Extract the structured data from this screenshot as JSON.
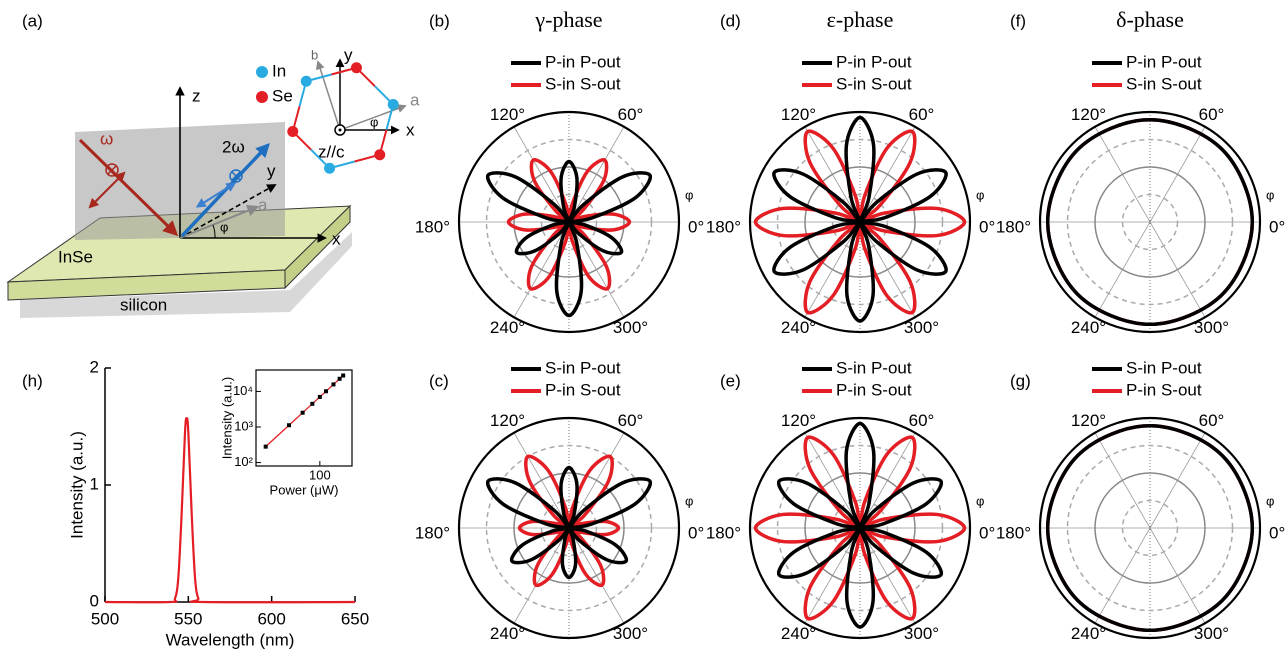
{
  "schematic": {
    "label": "(a)",
    "axis_z": "z",
    "axis_y": "y",
    "axis_x": "x",
    "omega": "ω",
    "two_omega": "2ω",
    "a_axis": "a",
    "angle": "φ",
    "material": "InSe",
    "substrate": "silicon",
    "legend": [
      "In",
      "Se"
    ],
    "crystal": {
      "b": "b",
      "y": "y",
      "x": "x",
      "a": "a",
      "angle": "φ",
      "z": "z//c"
    }
  },
  "chart_data": [
    {
      "type": "polar",
      "label": "(b)",
      "title": "γ-phase",
      "angle_label": "φ",
      "rlim": [
        0,
        1
      ],
      "rticks": [
        0.25,
        0.5,
        0.75,
        1
      ],
      "thetaticks": [
        {
          "value": 0,
          "label": "0°"
        },
        {
          "value": 60,
          "label": "60°"
        },
        {
          "value": 120,
          "label": "120°"
        },
        {
          "value": 180,
          "label": "180°"
        },
        {
          "value": 240,
          "label": "240°"
        },
        {
          "value": 300,
          "label": "300°"
        }
      ],
      "theta": [
        0,
        10,
        20,
        30,
        40,
        50,
        60,
        70,
        80,
        90,
        100,
        110,
        120,
        130,
        140,
        150,
        160,
        170,
        180,
        190,
        200,
        210,
        220,
        230,
        240,
        250,
        260,
        270,
        280,
        290,
        300,
        310,
        320,
        330,
        340,
        350
      ],
      "series": [
        {
          "name": "P-in P-out",
          "color": "#000000",
          "values": [
            0,
            0.21,
            0.64,
            0.85,
            0.64,
            0.21,
            0,
            0.14,
            0.41,
            0.55,
            0.41,
            0.14,
            0,
            0.21,
            0.64,
            0.85,
            0.64,
            0.21,
            0,
            0.14,
            0.41,
            0.55,
            0.41,
            0.14,
            0,
            0.21,
            0.64,
            0.85,
            0.64,
            0.21,
            0,
            0.14,
            0.41,
            0.55,
            0.41,
            0.14
          ]
        },
        {
          "name": "S-in S-out",
          "color": "#e31e24",
          "values": [
            0.55,
            0.41,
            0.14,
            0,
            0.16,
            0.49,
            0.65,
            0.49,
            0.16,
            0,
            0.16,
            0.49,
            0.65,
            0.49,
            0.16,
            0,
            0.14,
            0.41,
            0.55,
            0.41,
            0.14,
            0,
            0.18,
            0.53,
            0.7,
            0.53,
            0.18,
            0,
            0.18,
            0.53,
            0.7,
            0.53,
            0.18,
            0,
            0.14,
            0.41
          ]
        }
      ]
    },
    {
      "type": "polar",
      "label": "(c)",
      "angle_label": "φ",
      "rlim": [
        0,
        1
      ],
      "rticks": [
        0.25,
        0.5,
        0.75,
        1
      ],
      "thetaticks": [
        {
          "value": 0,
          "label": "0°"
        },
        {
          "value": 60,
          "label": "60°"
        },
        {
          "value": 120,
          "label": "120°"
        },
        {
          "value": 180,
          "label": "180°"
        },
        {
          "value": 240,
          "label": "240°"
        },
        {
          "value": 300,
          "label": "300°"
        }
      ],
      "theta": [
        0,
        10,
        20,
        30,
        40,
        50,
        60,
        70,
        80,
        90,
        100,
        110,
        120,
        130,
        140,
        150,
        160,
        170,
        180,
        190,
        200,
        210,
        220,
        230,
        240,
        250,
        260,
        270,
        280,
        290,
        300,
        310,
        320,
        330,
        340,
        350
      ],
      "series": [
        {
          "name": "S-in P-out",
          "color": "#000000",
          "values": [
            0,
            0.21,
            0.64,
            0.85,
            0.64,
            0.21,
            0,
            0.14,
            0.41,
            0.55,
            0.41,
            0.14,
            0,
            0.21,
            0.64,
            0.85,
            0.64,
            0.21,
            0,
            0.15,
            0.45,
            0.6,
            0.45,
            0.15,
            0,
            0.11,
            0.34,
            0.45,
            0.34,
            0.11,
            0,
            0.15,
            0.45,
            0.6,
            0.45,
            0.15
          ]
        },
        {
          "name": "P-in S-out",
          "color": "#e31e24",
          "values": [
            0.45,
            0.34,
            0.11,
            0,
            0.19,
            0.56,
            0.75,
            0.56,
            0.19,
            0,
            0.19,
            0.56,
            0.75,
            0.56,
            0.19,
            0,
            0.11,
            0.34,
            0.45,
            0.34,
            0.11,
            0,
            0.15,
            0.45,
            0.6,
            0.45,
            0.15,
            0,
            0.15,
            0.45,
            0.6,
            0.45,
            0.15,
            0,
            0.11,
            0.34
          ]
        }
      ]
    },
    {
      "type": "polar",
      "label": "(d)",
      "title": "ε-phase",
      "angle_label": "φ",
      "rlim": [
        0,
        1
      ],
      "rticks": [
        0.25,
        0.5,
        0.75,
        1
      ],
      "thetaticks": [
        {
          "value": 0,
          "label": "0°"
        },
        {
          "value": 60,
          "label": "60°"
        },
        {
          "value": 120,
          "label": "120°"
        },
        {
          "value": 180,
          "label": "180°"
        },
        {
          "value": 240,
          "label": "240°"
        },
        {
          "value": 300,
          "label": "300°"
        }
      ],
      "theta": [
        0,
        10,
        20,
        30,
        40,
        50,
        60,
        70,
        80,
        90,
        100,
        110,
        120,
        130,
        140,
        150,
        160,
        170,
        180,
        190,
        200,
        210,
        220,
        230,
        240,
        250,
        260,
        270,
        280,
        290,
        300,
        310,
        320,
        330,
        340,
        350
      ],
      "series": [
        {
          "name": "P-in P-out",
          "color": "#000000",
          "values": [
            0,
            0.23,
            0.68,
            0.9,
            0.68,
            0.23,
            0,
            0.24,
            0.71,
            0.95,
            0.71,
            0.24,
            0,
            0.23,
            0.68,
            0.9,
            0.68,
            0.23,
            0,
            0.23,
            0.68,
            0.9,
            0.68,
            0.23,
            0,
            0.23,
            0.68,
            0.9,
            0.68,
            0.23,
            0,
            0.23,
            0.68,
            0.9,
            0.68,
            0.23
          ]
        },
        {
          "name": "S-in S-out",
          "color": "#e31e24",
          "values": [
            0.95,
            0.71,
            0.24,
            0,
            0.24,
            0.71,
            0.95,
            0.71,
            0.24,
            0,
            0.24,
            0.71,
            0.95,
            0.71,
            0.24,
            0,
            0.24,
            0.71,
            0.95,
            0.71,
            0.24,
            0,
            0.24,
            0.71,
            0.95,
            0.71,
            0.24,
            0,
            0.24,
            0.71,
            0.95,
            0.71,
            0.24,
            0,
            0.24,
            0.71
          ]
        }
      ]
    },
    {
      "type": "polar",
      "label": "(e)",
      "angle_label": "φ",
      "rlim": [
        0,
        1
      ],
      "rticks": [
        0.25,
        0.5,
        0.75,
        1
      ],
      "thetaticks": [
        {
          "value": 0,
          "label": "0°"
        },
        {
          "value": 60,
          "label": "60°"
        },
        {
          "value": 120,
          "label": "120°"
        },
        {
          "value": 180,
          "label": "180°"
        },
        {
          "value": 240,
          "label": "240°"
        },
        {
          "value": 300,
          "label": "300°"
        }
      ],
      "theta": [
        0,
        10,
        20,
        30,
        40,
        50,
        60,
        70,
        80,
        90,
        100,
        110,
        120,
        130,
        140,
        150,
        160,
        170,
        180,
        190,
        200,
        210,
        220,
        230,
        240,
        250,
        260,
        270,
        280,
        290,
        300,
        310,
        320,
        330,
        340,
        350
      ],
      "series": [
        {
          "name": "S-in P-out",
          "color": "#000000",
          "values": [
            0,
            0.21,
            0.64,
            0.85,
            0.64,
            0.21,
            0,
            0.24,
            0.71,
            0.95,
            0.71,
            0.24,
            0,
            0.21,
            0.64,
            0.85,
            0.64,
            0.21,
            0,
            0.21,
            0.64,
            0.85,
            0.64,
            0.21,
            0,
            0.23,
            0.68,
            0.9,
            0.68,
            0.23,
            0,
            0.21,
            0.64,
            0.85,
            0.64,
            0.21
          ]
        },
        {
          "name": "P-in S-out",
          "color": "#e31e24",
          "values": [
            0.95,
            0.71,
            0.24,
            0,
            0.24,
            0.71,
            0.95,
            0.71,
            0.24,
            0,
            0.24,
            0.71,
            0.95,
            0.71,
            0.24,
            0,
            0.24,
            0.71,
            0.95,
            0.71,
            0.24,
            0,
            0.24,
            0.71,
            0.95,
            0.71,
            0.24,
            0,
            0.24,
            0.71,
            0.95,
            0.71,
            0.24,
            0,
            0.24,
            0.71
          ]
        }
      ]
    },
    {
      "type": "polar",
      "label": "(f)",
      "title": "δ-phase",
      "angle_label": "φ",
      "rlim": [
        0,
        1
      ],
      "rticks": [
        0.25,
        0.5,
        0.75,
        1
      ],
      "thetaticks": [
        {
          "value": 0,
          "label": "0°"
        },
        {
          "value": 60,
          "label": "60°"
        },
        {
          "value": 120,
          "label": "120°"
        },
        {
          "value": 180,
          "label": "180°"
        },
        {
          "value": 240,
          "label": "240°"
        },
        {
          "value": 300,
          "label": "300°"
        }
      ],
      "theta": [
        0,
        45,
        90,
        135,
        180,
        225,
        270,
        315
      ],
      "series": [
        {
          "name": "P-in P-out",
          "color": "#000000",
          "values": [
            0.93,
            0.93,
            0.93,
            0.93,
            0.93,
            0.93,
            0.93,
            0.93
          ]
        },
        {
          "name": "S-in S-out",
          "color": "#e31e24",
          "values": [
            0.93,
            0.93,
            0.93,
            0.93,
            0.93,
            0.93,
            0.93,
            0.93
          ]
        }
      ]
    },
    {
      "type": "polar",
      "label": "(g)",
      "angle_label": "φ",
      "rlim": [
        0,
        1
      ],
      "rticks": [
        0.25,
        0.5,
        0.75,
        1
      ],
      "thetaticks": [
        {
          "value": 0,
          "label": "0°"
        },
        {
          "value": 60,
          "label": "60°"
        },
        {
          "value": 120,
          "label": "120°"
        },
        {
          "value": 180,
          "label": "180°"
        },
        {
          "value": 240,
          "label": "240°"
        },
        {
          "value": 300,
          "label": "300°"
        }
      ],
      "theta": [
        0,
        45,
        90,
        135,
        180,
        225,
        270,
        315
      ],
      "series": [
        {
          "name": "S-in P-out",
          "color": "#000000",
          "values": [
            0.93,
            0.93,
            0.93,
            0.93,
            0.93,
            0.93,
            0.93,
            0.93
          ]
        },
        {
          "name": "P-in S-out",
          "color": "#e31e24",
          "values": [
            0.93,
            0.93,
            0.93,
            0.93,
            0.93,
            0.93,
            0.93,
            0.93
          ]
        }
      ]
    },
    {
      "type": "line",
      "label": "(h)",
      "xlabel": "Wavelength (nm)",
      "ylabel": "Intensity (a.u.)",
      "xlim": [
        500,
        650
      ],
      "ylim": [
        0,
        2
      ],
      "xticks": [
        500,
        550,
        600,
        650
      ],
      "yticks": [
        0,
        1,
        2
      ],
      "x": [
        500,
        539,
        542,
        544,
        546,
        548,
        549,
        550,
        552,
        554,
        556,
        559,
        650
      ],
      "series": [
        {
          "color": "#e31e24",
          "values": [
            0,
            0,
            0.03,
            0.21,
            0.76,
            1.45,
            1.57,
            1.45,
            0.76,
            0.21,
            0.03,
            0,
            0
          ]
        }
      ],
      "inset": {
        "type": "scatter",
        "xlabel": "Power (μW)",
        "ylabel": "Intensity (a.u.)",
        "log_x": true,
        "log_y": true,
        "xlim": [
          15,
          260
        ],
        "ylim": [
          80,
          40000
        ],
        "xticks": [
          100
        ],
        "yticks": [
          {
            "value": 100,
            "label": "10²"
          },
          {
            "value": 1000,
            "label": "10³"
          },
          {
            "value": 10000,
            "label": "10⁴"
          }
        ],
        "x": [
          20,
          40,
          60,
          80,
          100,
          120,
          150,
          180,
          200
        ],
        "values": [
          280,
          1120,
          2520,
          4480,
          7000,
          10080,
          15750,
          22680,
          28000
        ],
        "color": "#000000",
        "line_color": "#e31e24"
      }
    }
  ]
}
